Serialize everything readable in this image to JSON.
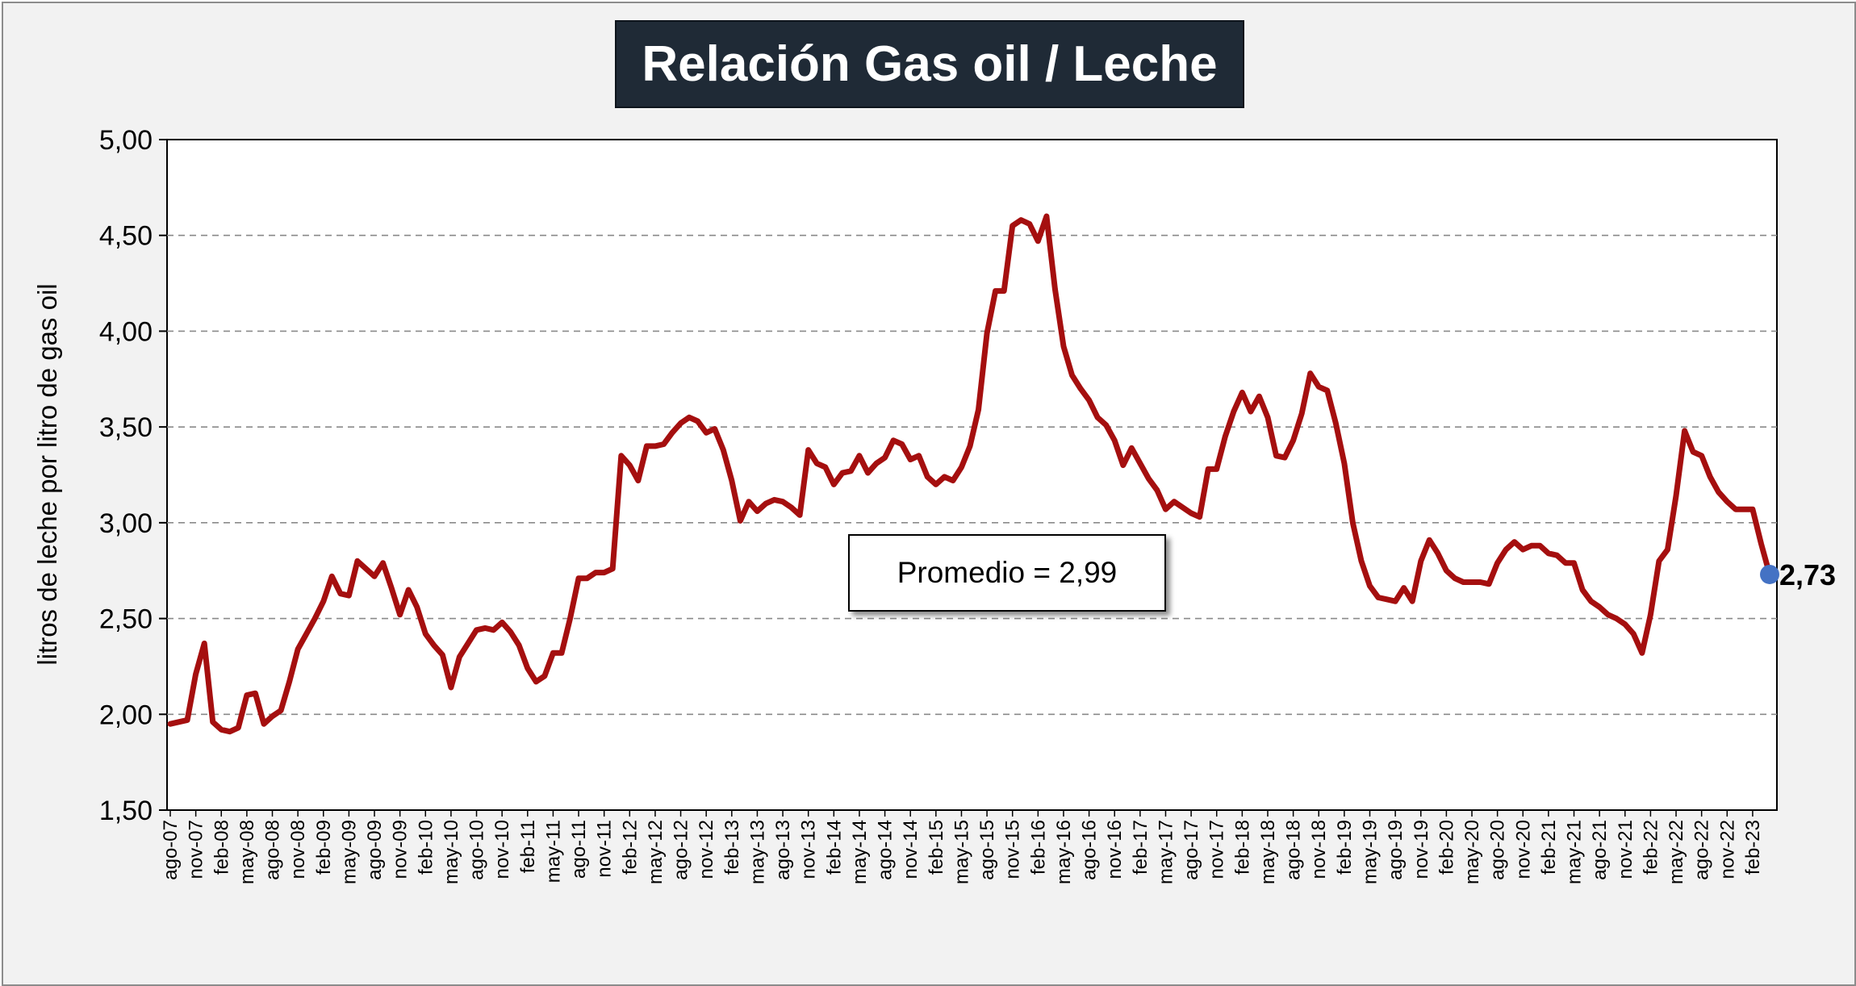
{
  "title": "Relación Gas oil / Leche",
  "chart_data": {
    "type": "line",
    "title": "Relación Gas oil / Leche",
    "ylabel": "litros de leche por litro de gas oil",
    "xlabel": "",
    "ylim": [
      1.5,
      5.0
    ],
    "yticks": [
      1.5,
      2.0,
      2.5,
      3.0,
      3.5,
      4.0,
      4.5,
      5.0
    ],
    "ytick_labels": [
      "1,50",
      "2,00",
      "2,50",
      "3,00",
      "3,50",
      "4,00",
      "4,50",
      "5,00"
    ],
    "grid": "horizontal-dashed",
    "line_color": "#a50f0f",
    "marker_color": "#4472c4",
    "start": "ago-07",
    "x_labels": [
      "ago-07",
      "nov-07",
      "feb-08",
      "may-08",
      "ago-08",
      "nov-08",
      "feb-09",
      "may-09",
      "ago-09",
      "nov-09",
      "feb-10",
      "may-10",
      "ago-10",
      "nov-10",
      "feb-11",
      "may-11",
      "ago-11",
      "nov-11",
      "feb-12",
      "may-12",
      "ago-12",
      "nov-12",
      "feb-13",
      "may-13",
      "ago-13",
      "nov-13",
      "feb-14",
      "may-14",
      "ago-14",
      "nov-14",
      "feb-15",
      "may-15",
      "ago-15",
      "nov-15",
      "feb-16",
      "may-16",
      "ago-16",
      "nov-16",
      "feb-17",
      "may-17",
      "ago-17",
      "nov-17",
      "feb-18",
      "may-18",
      "ago-18",
      "nov-18",
      "feb-19",
      "may-19",
      "ago-19",
      "nov-19",
      "feb-20",
      "may-20",
      "ago-20",
      "nov-20",
      "feb-21",
      "may-21",
      "ago-21",
      "nov-21",
      "feb-22",
      "may-22",
      "ago-22",
      "nov-22",
      "feb-23"
    ],
    "values": [
      1.95,
      1.96,
      1.97,
      2.21,
      2.37,
      1.96,
      1.92,
      1.91,
      1.93,
      2.1,
      2.11,
      1.95,
      1.99,
      2.02,
      2.17,
      2.34,
      2.42,
      2.5,
      2.59,
      2.72,
      2.63,
      2.62,
      2.8,
      2.76,
      2.72,
      2.79,
      2.66,
      2.52,
      2.65,
      2.56,
      2.42,
      2.36,
      2.31,
      2.14,
      2.3,
      2.37,
      2.44,
      2.45,
      2.44,
      2.48,
      2.43,
      2.36,
      2.24,
      2.17,
      2.2,
      2.32,
      2.32,
      2.5,
      2.71,
      2.71,
      2.74,
      2.74,
      2.76,
      3.35,
      3.3,
      3.22,
      3.4,
      3.4,
      3.41,
      3.47,
      3.52,
      3.55,
      3.53,
      3.47,
      3.49,
      3.38,
      3.22,
      3.01,
      3.11,
      3.06,
      3.1,
      3.12,
      3.11,
      3.08,
      3.04,
      3.38,
      3.31,
      3.29,
      3.2,
      3.26,
      3.27,
      3.35,
      3.26,
      3.31,
      3.34,
      3.43,
      3.41,
      3.33,
      3.35,
      3.24,
      3.2,
      3.24,
      3.22,
      3.29,
      3.4,
      3.59,
      3.99,
      4.21,
      4.21,
      4.55,
      4.58,
      4.56,
      4.47,
      4.6,
      4.22,
      3.92,
      3.77,
      3.7,
      3.64,
      3.55,
      3.51,
      3.43,
      3.3,
      3.39,
      3.31,
      3.23,
      3.17,
      3.07,
      3.11,
      3.08,
      3.05,
      3.03,
      3.28,
      3.28,
      3.45,
      3.58,
      3.68,
      3.58,
      3.66,
      3.55,
      3.35,
      3.34,
      3.43,
      3.57,
      3.78,
      3.71,
      3.69,
      3.52,
      3.31,
      3.0,
      2.8,
      2.67,
      2.61,
      2.6,
      2.59,
      2.66,
      2.59,
      2.8,
      2.91,
      2.84,
      2.75,
      2.71,
      2.69,
      2.69,
      2.69,
      2.68,
      2.79,
      2.86,
      2.9,
      2.86,
      2.88,
      2.88,
      2.84,
      2.83,
      2.79,
      2.79,
      2.65,
      2.59,
      2.56,
      2.52,
      2.5,
      2.47,
      2.42,
      2.32,
      2.52,
      2.8,
      2.86,
      3.14,
      3.48,
      3.37,
      3.35,
      3.24,
      3.16,
      3.11,
      3.07,
      3.07,
      3.07,
      2.89,
      2.73
    ],
    "average_label": "Promedio = 2,99",
    "last_value_label": "2,73"
  }
}
